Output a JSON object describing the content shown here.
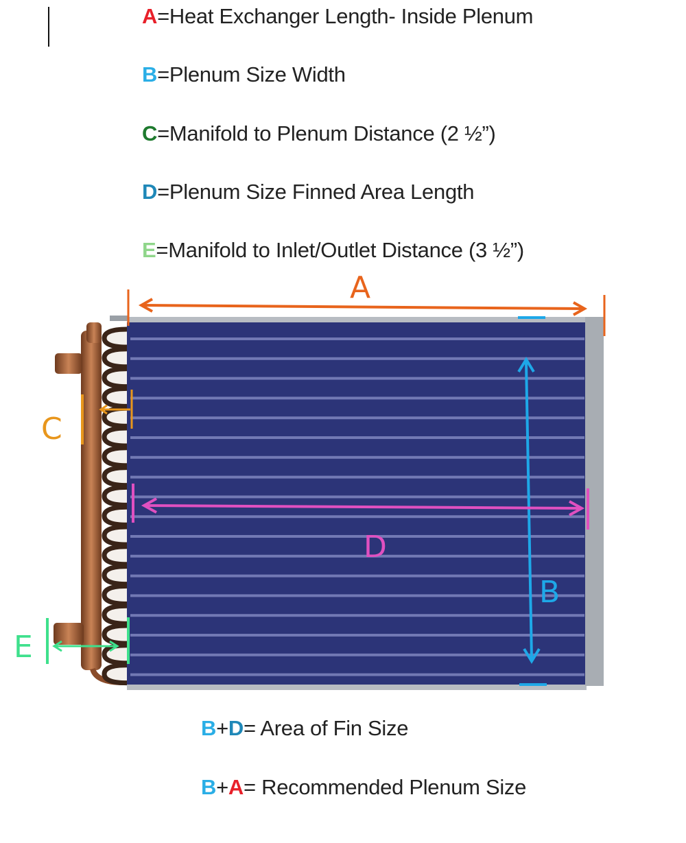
{
  "legend": [
    {
      "key": "A",
      "text": "=Heat Exchanger Length- Inside Plenum",
      "color": "#e8202a"
    },
    {
      "key": "B",
      "text": "=Plenum Size Width",
      "color": "#2aaee6"
    },
    {
      "key": "C",
      "text": "=Manifold to Plenum Distance (2 ½”)",
      "color": "#1e7a2e"
    },
    {
      "key": "D",
      "text": "=Plenum Size Finned Area Length",
      "color": "#1f88b8"
    },
    {
      "key": "E",
      "text": "=Manifold to Inlet/Outlet Distance (3 ½”)",
      "color": "#8fd68a"
    }
  ],
  "formulas": [
    {
      "k1": "B",
      "k1_color": "#2aaee6",
      "plus": "+",
      "k2": "D",
      "k2_color": "#1f88b8",
      "text": "= Area of Fin Size"
    },
    {
      "k1": "B",
      "k1_color": "#2aaee6",
      "plus": "+",
      "k2": "A",
      "k2_color": "#e8202a",
      "text": "= Recommended Plenum Size"
    }
  ],
  "dimensions": {
    "A": {
      "label": "A",
      "color": "#e8641c"
    },
    "B": {
      "label": "B",
      "color": "#1ea8e8"
    },
    "C": {
      "label": "C",
      "color": "#e8961c"
    },
    "D": {
      "label": "D",
      "color": "#e050c0"
    },
    "E": {
      "label": "E",
      "color": "#3ee08c"
    }
  },
  "colors": {
    "fins": "#2c3478",
    "fin_stripe": "#8a90c8",
    "frame": "#a8adb3",
    "copper": "#a8643a"
  }
}
